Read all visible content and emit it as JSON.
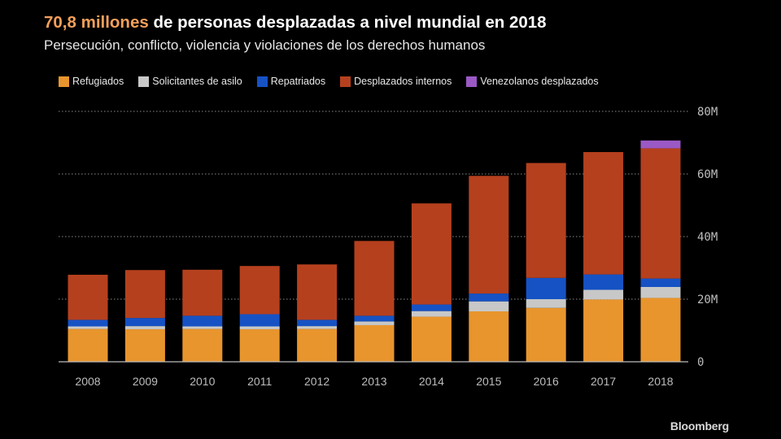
{
  "header": {
    "title_highlight": "70,8 millones",
    "title_rest": " de personas desplazadas a nivel mundial en 2018",
    "subtitle": "Persecución, conflicto, violencia y violaciones de los derechos humanos"
  },
  "brand": "Bloomberg",
  "chart_data": {
    "type": "bar",
    "stacked": true,
    "title": "70,8 millones de personas desplazadas a nivel mundial en 2018",
    "subtitle": "Persecución, conflicto, violencia y violaciones de los derechos humanos",
    "xlabel": "",
    "ylabel": "",
    "categories": [
      "2008",
      "2009",
      "2010",
      "2011",
      "2012",
      "2013",
      "2014",
      "2015",
      "2016",
      "2017",
      "2018"
    ],
    "ylim": [
      0,
      80
    ],
    "yticks": [
      0,
      20,
      40,
      60,
      80
    ],
    "ytick_labels": [
      "0",
      "20M",
      "40M",
      "60M",
      "80M"
    ],
    "grid": true,
    "legend_position": "top",
    "series": [
      {
        "name": "Refugiados",
        "color": "#e8952d",
        "values": [
          10.5,
          10.4,
          10.5,
          10.4,
          10.5,
          11.7,
          14.4,
          16.1,
          17.2,
          19.9,
          20.4
        ]
      },
      {
        "name": "Solicitantes de asilo",
        "color": "#c8c8c8",
        "values": [
          0.8,
          1.0,
          0.8,
          0.9,
          0.9,
          1.2,
          1.8,
          3.2,
          2.8,
          3.1,
          3.5
        ]
      },
      {
        "name": "Repatriados",
        "color": "#1652c4",
        "values": [
          2.1,
          2.6,
          3.4,
          3.9,
          2.0,
          1.8,
          2.1,
          2.5,
          6.8,
          4.9,
          2.7
        ]
      },
      {
        "name": "Desplazados internos",
        "color": "#b5401e",
        "values": [
          14.4,
          15.3,
          14.7,
          15.4,
          17.7,
          23.9,
          32.3,
          37.6,
          36.7,
          39.1,
          41.6
        ]
      },
      {
        "name": "Venezolanos desplazados",
        "color": "#9b59c5",
        "values": [
          0,
          0,
          0,
          0,
          0,
          0,
          0,
          0,
          0,
          0,
          2.5
        ]
      }
    ]
  }
}
